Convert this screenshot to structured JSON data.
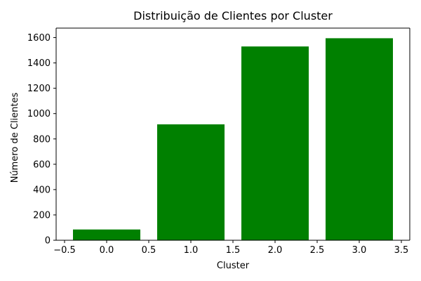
{
  "chart_data": {
    "type": "bar",
    "title": "Distribuição de Clientes por Cluster",
    "xlabel": "Cluster",
    "ylabel": "Número de Clientes",
    "categories": [
      0,
      1,
      2,
      3
    ],
    "values": [
      85,
      915,
      1530,
      1595
    ],
    "bar_color": "#008000",
    "x_ticks": [
      -0.5,
      0.0,
      0.5,
      1.0,
      1.5,
      2.0,
      2.5,
      3.0,
      3.5
    ],
    "x_tick_labels": [
      "−0.5",
      "0.0",
      "0.5",
      "1.0",
      "1.5",
      "2.0",
      "2.5",
      "3.0",
      "3.5"
    ],
    "y_ticks": [
      0,
      200,
      400,
      600,
      800,
      1000,
      1200,
      1400,
      1600
    ],
    "y_tick_labels": [
      "0",
      "200",
      "400",
      "600",
      "800",
      "1000",
      "1200",
      "1400",
      "1600"
    ],
    "xlim": [
      -0.6,
      3.6
    ],
    "ylim": [
      0,
      1675
    ],
    "bar_width": 0.8,
    "grid": false,
    "legend": "none"
  }
}
